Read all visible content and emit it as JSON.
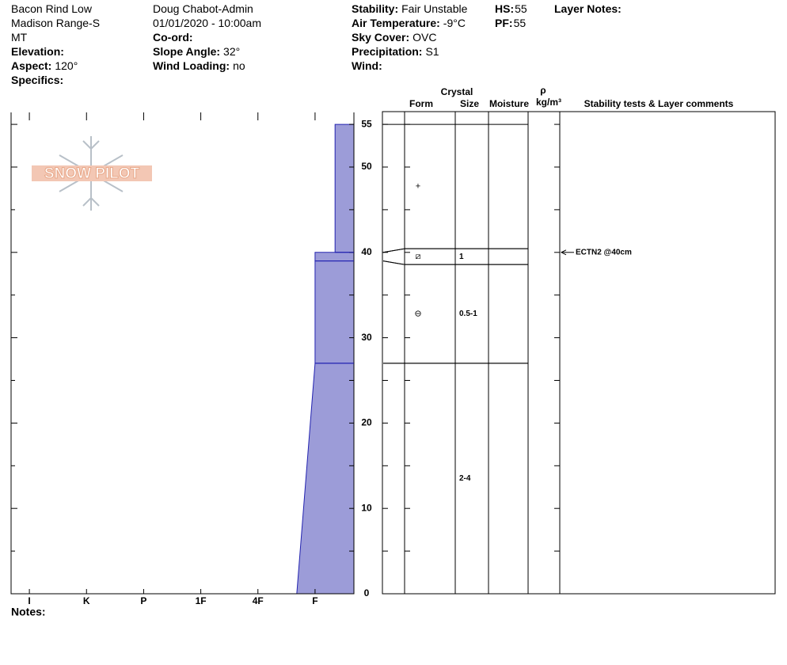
{
  "header": {
    "columns": [
      [
        {
          "value": "Bacon Rind Low"
        },
        {
          "value": "Madison Range-S"
        },
        {
          "value": "MT"
        },
        {
          "label": "Elevation:"
        },
        {
          "label": "Aspect:",
          "value": "120°"
        },
        {
          "label": "Specifics:"
        }
      ],
      [
        {
          "value": "Doug Chabot-Admin"
        },
        {
          "value": "01/01/2020 - 10:00am"
        },
        {
          "label": "Co-ord:"
        },
        {
          "label": "Slope Angle:",
          "value": "32°"
        },
        {
          "label": "Wind Loading:",
          "value": "no"
        }
      ],
      [
        {
          "label": "Stability:",
          "value": "Fair Unstable"
        },
        {
          "label": "Air Temperature:",
          "value": "-9°C"
        },
        {
          "label": "Sky Cover:",
          "value": "OVC"
        },
        {
          "label": "Precipitation:",
          "value": "S1"
        },
        {
          "label": "Wind:"
        }
      ],
      [
        {
          "label": "HS:",
          "value": 55
        },
        {
          "label": "PF:",
          "value": 55
        }
      ],
      [
        {
          "label": "Layer Notes:"
        }
      ]
    ]
  },
  "chart_data": {
    "type": "snow_profile",
    "logo": "SNOW PILOT",
    "color": "#9c9cd8",
    "xlim": [
      -0.32,
      5.68
    ],
    "xticks": [
      {
        "value": 0,
        "label": "I"
      },
      {
        "value": 1,
        "label": "K"
      },
      {
        "value": 2,
        "label": "P"
      },
      {
        "value": 3,
        "label": "1F"
      },
      {
        "value": 4,
        "label": "4F"
      },
      {
        "value": 5,
        "label": "F"
      }
    ],
    "ylim": [
      0,
      56.4
    ],
    "yticks": [
      0,
      10,
      20,
      30,
      40,
      50,
      55
    ],
    "minor_yticks": [
      5,
      15,
      25,
      35,
      45
    ],
    "table_headers": {
      "crystal": "Crystal",
      "form": "Form",
      "size": "Size",
      "moisture": "Moisture",
      "rho": "ρ",
      "density_unit": "kg/m³",
      "comments": "Stability tests & Layer comments"
    },
    "layers": [
      {
        "top": 55,
        "bottom": 40,
        "hardness": 5.35,
        "form": "+"
      },
      {
        "top": 40,
        "bottom": 39,
        "hardness": 5.0,
        "form": "⧄",
        "size": "1"
      },
      {
        "top": 39,
        "bottom": 27,
        "hardness": 5.0,
        "form": "⊖",
        "size": "0.5-1"
      },
      {
        "top": 27,
        "bottom": 0,
        "hardness": 5.0,
        "hardness_bottom": 4.68,
        "size": "2-4"
      }
    ],
    "tests": [
      {
        "depth": 40,
        "label": "ECTN2 @40cm"
      }
    ],
    "notes_label": "Notes:"
  }
}
